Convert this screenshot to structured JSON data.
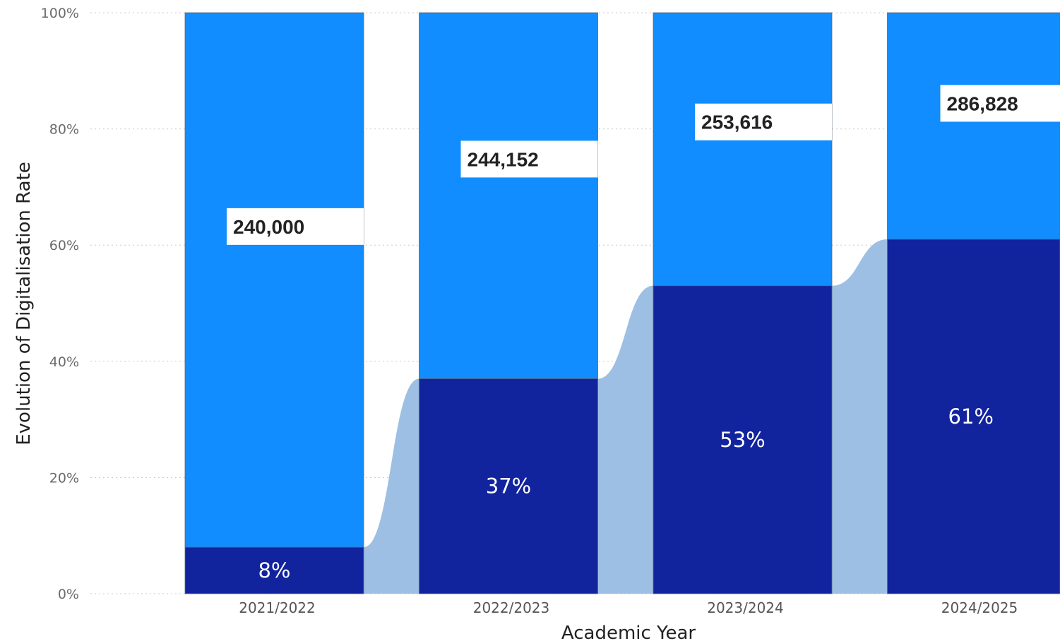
{
  "chart_data": {
    "type": "bar",
    "stacked": true,
    "categories": [
      "2021/2022",
      "2022/2023",
      "2023/2024",
      "2024/2025"
    ],
    "digitalisation_rate": [
      8,
      37,
      53,
      61
    ],
    "digitalisation_labels": [
      "8%",
      "37%",
      "53%",
      "61%"
    ],
    "totals": [
      240000,
      244152,
      253616,
      286828
    ],
    "total_labels": [
      "240,000",
      "244,152",
      "253,616",
      "286,828"
    ],
    "xlabel": "Academic Year",
    "ylabel": "Evolution of Digitalisation Rate",
    "ylim": [
      0,
      100
    ],
    "yticks": [
      "0%",
      "20%",
      "40%",
      "60%",
      "80%",
      "100%"
    ],
    "grid": true,
    "colors": {
      "digitalised": "#12239e",
      "remainder": "#118dff",
      "ribbon": "#9dbfe3",
      "grid": "#c8c8c8"
    }
  }
}
